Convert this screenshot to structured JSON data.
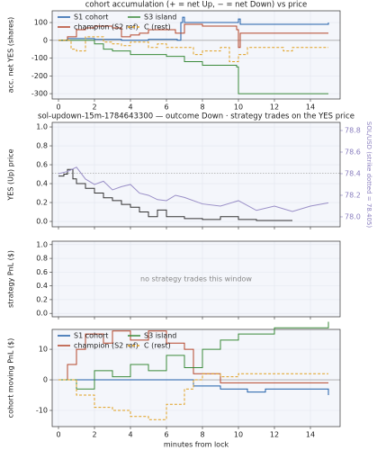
{
  "chart_data": [
    {
      "type": "line",
      "title": "cohort accumulation (+ = net Up, − = net Down) vs price",
      "ylabel": "acc. net YES (shares)",
      "xlim": [
        -0.35,
        15.65
      ],
      "xticks": [
        0,
        2,
        4,
        6,
        8,
        10,
        12,
        14
      ],
      "xtick_labels": true,
      "ylim": [
        -330,
        166
      ],
      "yticks": [
        -300,
        -200,
        -100,
        0,
        100
      ],
      "grid": true,
      "hline": 0,
      "legend": "upper left",
      "series": [
        {
          "name": "S1 cohort",
          "color": "#1f5fa8",
          "dashed": false,
          "step": true,
          "x": [
            0,
            0.5,
            2,
            3.5,
            5,
            6.6,
            6.8,
            6.9,
            7,
            9.9,
            10,
            10.1,
            15
          ],
          "values": [
            0,
            10,
            5,
            0,
            5,
            0,
            100,
            130,
            100,
            100,
            120,
            90,
            100
          ]
        },
        {
          "name": "champion (S2 ref)",
          "color": "#b5452a",
          "dashed": false,
          "step": true,
          "x": [
            0,
            0.5,
            1,
            1.5,
            2,
            3,
            3.5,
            4,
            4.5,
            5,
            6,
            6.5,
            7,
            8,
            9.9,
            10,
            10.1,
            15
          ],
          "values": [
            0,
            20,
            60,
            70,
            80,
            70,
            20,
            30,
            40,
            60,
            60,
            40,
            90,
            80,
            60,
            -40,
            40,
            40
          ]
        },
        {
          "name": "S3 island",
          "color": "#3a8a3a",
          "dashed": false,
          "step": true,
          "x": [
            0,
            2,
            2.5,
            3,
            4,
            5,
            6,
            7,
            8,
            9.9,
            10,
            15
          ],
          "values": [
            0,
            -20,
            -50,
            -60,
            -80,
            -80,
            -90,
            -120,
            -140,
            -150,
            -300,
            -300
          ]
        },
        {
          "name": "C (rest)",
          "color": "#e0a020",
          "dashed": true,
          "step": true,
          "x": [
            0,
            0.7,
            1,
            1.5,
            2.5,
            3,
            3.5,
            4,
            5,
            5.5,
            6,
            7,
            7.5,
            8,
            9,
            9.5,
            10,
            10.5,
            12.5,
            13,
            15
          ],
          "values": [
            0,
            -50,
            -60,
            20,
            -10,
            -20,
            -30,
            -10,
            -40,
            -20,
            -40,
            -40,
            -80,
            -60,
            -40,
            -120,
            -80,
            -40,
            -60,
            -40,
            -40
          ]
        }
      ]
    },
    {
      "type": "line",
      "title": "sol-updown-15m-1784643300 — outcome Down · strategy trades on the YES price",
      "ylabel": "YES (Up) price",
      "y2label": "SOL/USD (strike dotted = 78.405)",
      "xlim": [
        -0.35,
        15.65
      ],
      "xticks": [
        0,
        2,
        4,
        6,
        8,
        10,
        12,
        14
      ],
      "xtick_labels": false,
      "ylim": [
        -0.057,
        1.048
      ],
      "yticks": [
        {
          "value": 0,
          "label": "0.0"
        },
        0.2,
        0.4,
        0.6,
        0.8,
        {
          "value": 1,
          "label": "1.0"
        }
      ],
      "y2lim": [
        77.908,
        78.875
      ],
      "y2ticks": [
        {
          "value": 78,
          "label": "78.0"
        },
        78.2,
        78.4,
        78.6,
        78.8
      ],
      "y2color": "#8a7fbf",
      "grid": true,
      "hline": 78.405,
      "hline_axis": "y2",
      "series": [
        {
          "color": "#333333",
          "dashed": false,
          "step": true,
          "x": [
            0,
            0.3,
            0.5,
            0.8,
            1,
            1.5,
            2,
            2.5,
            3,
            3.5,
            4,
            4.5,
            5,
            5.5,
            6,
            7,
            8,
            9,
            10,
            11,
            13
          ],
          "values": [
            0.48,
            0.5,
            0.55,
            0.45,
            0.4,
            0.35,
            0.3,
            0.25,
            0.22,
            0.18,
            0.15,
            0.1,
            0.05,
            0.12,
            0.05,
            0.03,
            0.02,
            0.05,
            0.02,
            0.01,
            0.01
          ]
        },
        {
          "color": "#9a8fc7",
          "dashed": false,
          "step": false,
          "axis": "y2",
          "x": [
            0,
            0.5,
            1,
            1.5,
            2,
            2.5,
            3,
            3.5,
            4,
            4.5,
            5,
            5.5,
            6,
            6.5,
            7,
            8,
            9,
            10,
            11,
            12,
            13,
            14,
            15
          ],
          "values": [
            78.4,
            78.42,
            78.46,
            78.35,
            78.3,
            78.33,
            78.25,
            78.28,
            78.3,
            78.22,
            78.2,
            78.16,
            78.15,
            78.2,
            78.18,
            78.12,
            78.1,
            78.15,
            78.06,
            78.1,
            78.05,
            78.1,
            78.13
          ]
        }
      ]
    },
    {
      "type": "line",
      "ylabel": "strategy PnL ($)",
      "annotation": "no strategy trades this window",
      "xlim": [
        -0.35,
        15.65
      ],
      "xticks": [
        0,
        2,
        4,
        6,
        8,
        10,
        12,
        14
      ],
      "xtick_labels": false,
      "ylim": [
        -0.05,
        1.05
      ],
      "yticks": [
        {
          "value": 0,
          "label": "0.0"
        },
        0.2,
        0.4,
        0.6,
        0.8,
        {
          "value": 1,
          "label": "1.0"
        }
      ],
      "grid": true,
      "series": []
    },
    {
      "type": "line",
      "ylabel": "cohort moving PnL ($)",
      "xlabel": "minutes from lock",
      "xlim": [
        -0.35,
        15.65
      ],
      "xticks": [
        0,
        2,
        4,
        6,
        8,
        10,
        12,
        14
      ],
      "xtick_labels": true,
      "ylim": [
        -15.3,
        16.5
      ],
      "yticks": [
        -10,
        0,
        10
      ],
      "grid": true,
      "hline": 0,
      "legend": "upper left",
      "series": [
        {
          "name": "S1 cohort",
          "color": "#1f5fa8",
          "dashed": false,
          "step": true,
          "x": [
            0,
            7,
            7.5,
            9,
            10.5,
            11.5,
            15
          ],
          "values": [
            0,
            0,
            -2,
            -3,
            -4,
            -3,
            -5
          ]
        },
        {
          "name": "champion (S2 ref)",
          "color": "#b5452a",
          "dashed": false,
          "step": true,
          "x": [
            0,
            0.5,
            1,
            1.5,
            2.5,
            3,
            4,
            5,
            6,
            7,
            7.5,
            9,
            15
          ],
          "values": [
            0,
            5,
            10,
            15,
            12,
            16,
            13,
            16,
            12,
            10,
            2,
            -1,
            -1
          ]
        },
        {
          "name": "S3 island",
          "color": "#3a8a3a",
          "dashed": false,
          "step": true,
          "x": [
            0,
            0.5,
            1,
            2,
            3,
            4,
            5,
            6,
            7,
            8,
            9,
            10,
            12,
            14,
            15
          ],
          "values": [
            0,
            0,
            -3,
            3,
            1,
            5,
            3,
            8,
            4,
            10,
            13,
            15,
            17,
            17,
            19
          ]
        },
        {
          "name": "C (rest)",
          "color": "#e0a020",
          "dashed": true,
          "step": true,
          "x": [
            0,
            1,
            2,
            3,
            4,
            5,
            6,
            7,
            7.5,
            8,
            9,
            10,
            15
          ],
          "values": [
            0,
            -5,
            -9,
            -10,
            -12,
            -13,
            -8,
            -3,
            0,
            2,
            1,
            2,
            2
          ]
        }
      ]
    }
  ]
}
